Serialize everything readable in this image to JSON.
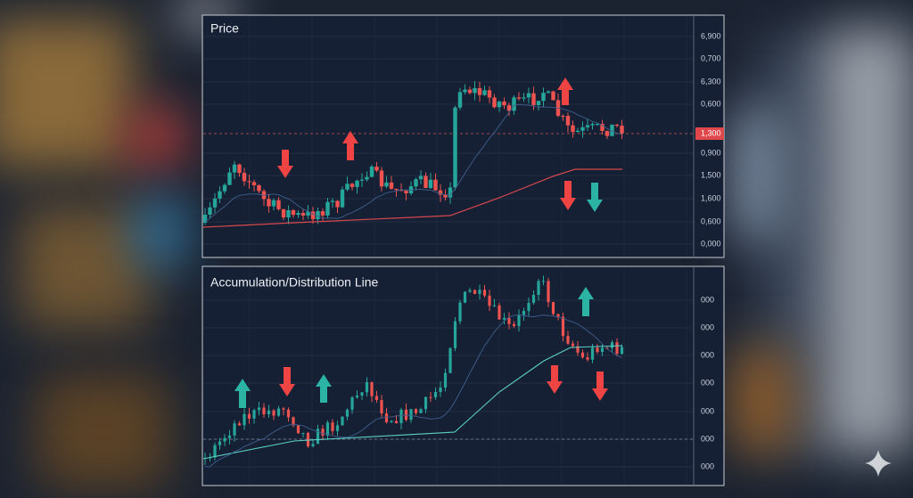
{
  "panels": [
    {
      "title": "Price",
      "axis_labels": [
        "6,900",
        "0,700",
        "6,300",
        "0,600",
        "0,900",
        "1,500",
        "1,600",
        "0,600",
        "0,000"
      ],
      "current_price_label": "1,300"
    },
    {
      "title": "Accumulation/Distribution Line",
      "axis_labels": [
        "000",
        "000",
        "000",
        "000",
        "000",
        "000",
        "000"
      ]
    }
  ]
}
